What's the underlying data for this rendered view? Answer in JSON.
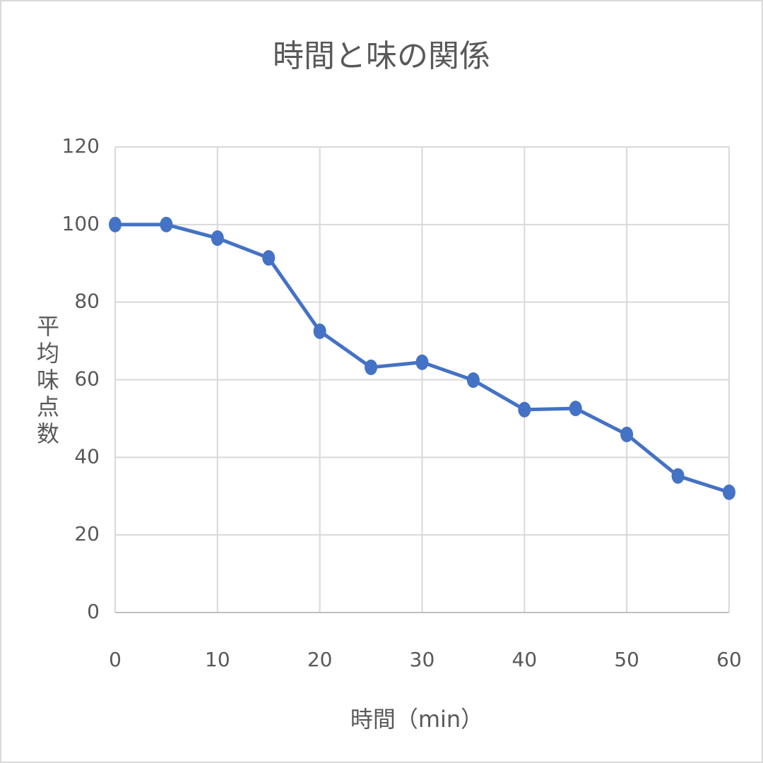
{
  "chart_data": {
    "type": "line",
    "title": "時間と味の関係",
    "x_label": "時間（min）",
    "y_label": "平均味点数",
    "x": [
      0,
      5,
      10,
      15,
      20,
      25,
      30,
      35,
      40,
      45,
      50,
      55,
      60
    ],
    "series": [
      {
        "name": "平均味点数",
        "color": "#4472c4",
        "values": [
          100,
          100,
          96.5,
          91.4,
          72.5,
          63.2,
          64.5,
          59.9,
          52.3,
          52.6,
          45.9,
          35.2,
          31.0
        ]
      }
    ],
    "xlim": [
      0,
      60
    ],
    "xticks": [
      0,
      10,
      20,
      30,
      40,
      50,
      60
    ],
    "ylim": [
      0,
      120
    ],
    "yticks": [
      0,
      20,
      40,
      60,
      80,
      100,
      120
    ],
    "grid": true
  }
}
